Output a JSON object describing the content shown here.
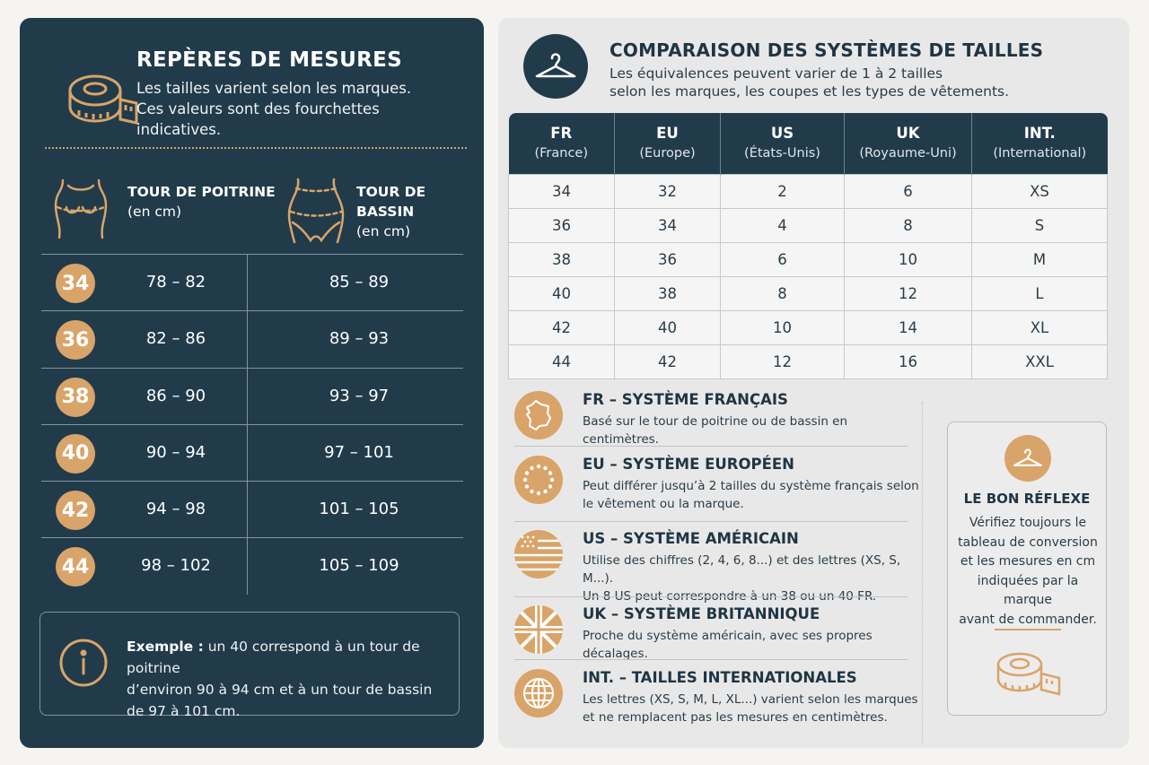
{
  "colors": {
    "navy": "#213b4b",
    "gold": "#d9a469",
    "panel_light": "#e8e8e8"
  },
  "left": {
    "title": "REPÈRES DE MESURES",
    "subtitle_line1": "Les tailles varient selon les marques.",
    "subtitle_line2": "Ces valeurs sont des fourchettes indicatives.",
    "col1": {
      "title": "TOUR DE POITRINE",
      "unit": "(en cm)",
      "icon": "bust-icon"
    },
    "col2": {
      "title_line1": "TOUR DE",
      "title_line2": "BASSIN",
      "unit": "(en cm)",
      "icon": "hips-icon"
    },
    "rows": [
      {
        "size": "34",
        "chest": "78 – 82",
        "hips": "85 – 89"
      },
      {
        "size": "36",
        "chest": "82 – 86",
        "hips": "89 – 93"
      },
      {
        "size": "38",
        "chest": "86 – 90",
        "hips": "93 – 97"
      },
      {
        "size": "40",
        "chest": "90 – 94",
        "hips": "97 – 101"
      },
      {
        "size": "42",
        "chest": "94 – 98",
        "hips": "101 – 105"
      },
      {
        "size": "44",
        "chest": "98 – 102",
        "hips": "105 – 109"
      }
    ],
    "example": {
      "label": "Exemple :",
      "text_line1": " un 40 correspond à un tour de poitrine",
      "text_line2": "d’environ 90 à 94 cm et à un tour de bassin",
      "text_line3": "de 97 à 101 cm."
    }
  },
  "right": {
    "title": "COMPARAISON DES SYSTÈMES DE TAILLES",
    "subtitle_line1": "Les équivalences peuvent varier de 1 à 2 tailles",
    "subtitle_line2": "selon les marques, les coupes et les types de vêtements.",
    "table": {
      "headers": [
        {
          "code": "FR",
          "name": "(France)"
        },
        {
          "code": "EU",
          "name": "(Europe)"
        },
        {
          "code": "US",
          "name": "(États-Unis)"
        },
        {
          "code": "UK",
          "name": "(Royaume-Uni)"
        },
        {
          "code": "INT.",
          "name": "(International)"
        }
      ],
      "rows": [
        [
          "34",
          "32",
          "2",
          "6",
          "XS"
        ],
        [
          "36",
          "34",
          "4",
          "8",
          "S"
        ],
        [
          "38",
          "36",
          "6",
          "10",
          "M"
        ],
        [
          "40",
          "38",
          "8",
          "12",
          "L"
        ],
        [
          "42",
          "40",
          "10",
          "14",
          "XL"
        ],
        [
          "44",
          "42",
          "12",
          "16",
          "XXL"
        ]
      ]
    },
    "systems": [
      {
        "code": "FR",
        "title": " – SYSTÈME FRANÇAIS",
        "line1": "Basé sur le tour de poitrine ou de bassin en centimètres.",
        "line2": "",
        "icon": "france-map-icon"
      },
      {
        "code": "EU",
        "title": " – SYSTÈME EUROPÉEN",
        "line1": "Peut différer jusqu’à 2 tailles du système français selon",
        "line2": "le vêtement ou la marque.",
        "icon": "eu-flag-icon"
      },
      {
        "code": "US",
        "title": " – SYSTÈME AMÉRICAIN",
        "line1": "Utilise des chiffres (2, 4, 6, 8...) et des lettres (XS, S, M...).",
        "line2": "Un 8 US peut correspondre à un 38 ou un 40 FR.",
        "icon": "us-flag-icon"
      },
      {
        "code": "UK",
        "title": " – SYSTÈME BRITANNIQUE",
        "line1": "Proche du système américain, avec ses propres décalages.",
        "line2": "",
        "icon": "uk-flag-icon"
      },
      {
        "code": "INT.",
        "title": " – TAILLES INTERNATIONALES",
        "line1": "Les lettres (XS, S, M, L, XL...) varient selon les marques",
        "line2": "et ne remplacent pas les mesures en centimètres.",
        "icon": "globe-icon"
      }
    ],
    "tip": {
      "title": "LE BON RÉFLEXE",
      "lines": [
        "Vérifiez toujours le",
        "tableau de conversion",
        "et les mesures en cm",
        "indiquées par la marque",
        "avant de commander."
      ]
    }
  }
}
